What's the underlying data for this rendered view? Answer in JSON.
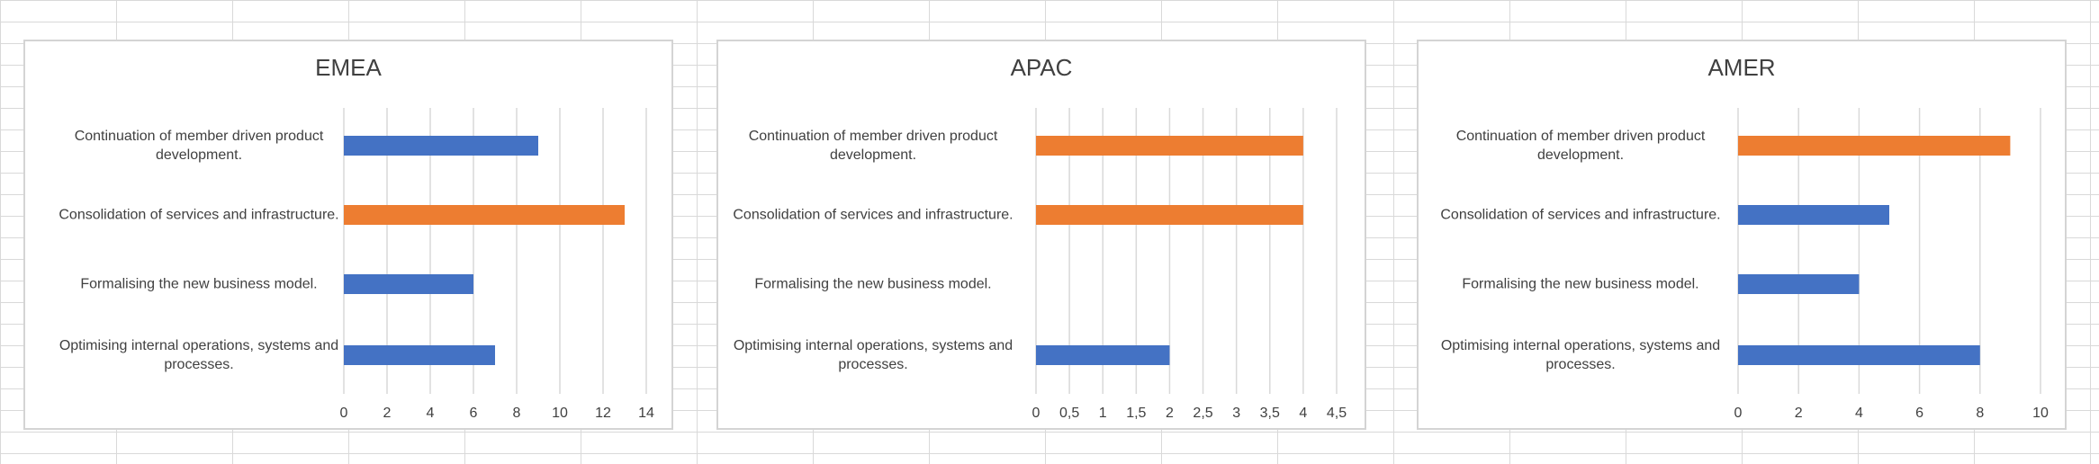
{
  "chart_data": [
    {
      "type": "bar",
      "title": "EMEA",
      "categories": [
        "Continuation of member driven product development.",
        "Consolidation of services and infrastructure.",
        "Formalising the new business model.",
        "Optimising internal operations, systems and processes."
      ],
      "values": [
        9,
        13,
        6,
        7
      ],
      "bar_colors": [
        "#4472C4",
        "#ED7D31",
        "#4472C4",
        "#4472C4"
      ],
      "xlim": [
        0,
        14
      ],
      "ticks": [
        "0",
        "2",
        "4",
        "6",
        "8",
        "10",
        "12",
        "14"
      ],
      "grid": true
    },
    {
      "type": "bar",
      "title": "APAC",
      "categories": [
        "Continuation of member driven product development.",
        "Consolidation of services and infrastructure.",
        "Formalising the new business model.",
        "Optimising internal operations, systems and processes."
      ],
      "values": [
        4,
        4,
        0,
        2
      ],
      "bar_colors": [
        "#ED7D31",
        "#ED7D31",
        "#4472C4",
        "#4472C4"
      ],
      "xlim": [
        0,
        4.5
      ],
      "ticks": [
        "0",
        "0,5",
        "1",
        "1,5",
        "2",
        "2,5",
        "3",
        "3,5",
        "4",
        "4,5"
      ],
      "grid": true
    },
    {
      "type": "bar",
      "title": "AMER",
      "categories": [
        "Continuation of member driven product development.",
        "Consolidation of services and infrastructure.",
        "Formalising the new business model.",
        "Optimising internal operations, systems and processes."
      ],
      "values": [
        9,
        5,
        4,
        8
      ],
      "bar_colors": [
        "#ED7D31",
        "#4472C4",
        "#4472C4",
        "#4472C4"
      ],
      "xlim": [
        0,
        10
      ],
      "ticks": [
        "0",
        "2",
        "4",
        "6",
        "8",
        "10"
      ],
      "grid": true
    }
  ]
}
